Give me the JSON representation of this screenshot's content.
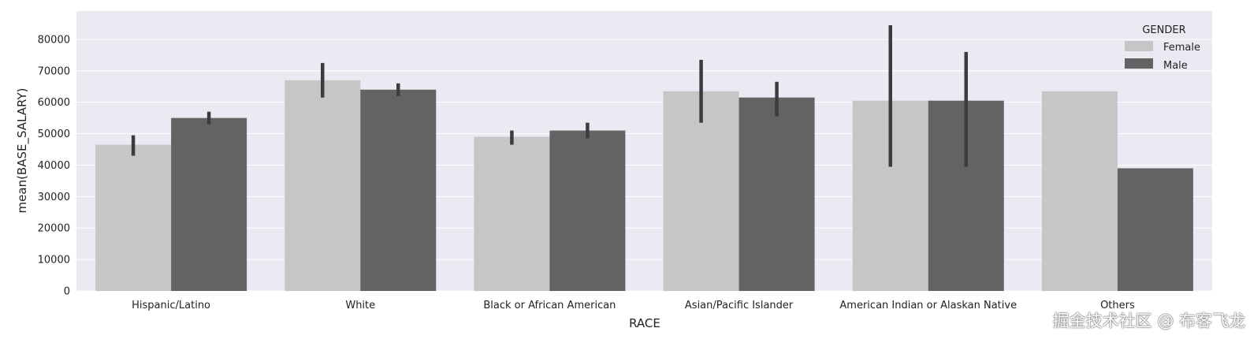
{
  "chart_data": {
    "type": "bar",
    "xlabel": "RACE",
    "ylabel": "mean(BASE_SALARY)",
    "ylim": [
      0,
      89000
    ],
    "yticks": [
      0,
      10000,
      20000,
      30000,
      40000,
      50000,
      60000,
      70000,
      80000
    ],
    "grid": true,
    "legend_position": "top-right",
    "legend_title": "GENDER",
    "categories": [
      "Hispanic/Latino",
      "White",
      "Black or African American",
      "Asian/Pacific Islander",
      "American Indian or Alaskan Native",
      "Others"
    ],
    "series": [
      {
        "name": "Female",
        "color": "#c6c6c6",
        "values": [
          46500,
          67000,
          49000,
          63500,
          60500,
          63500
        ],
        "ci": [
          [
            43000,
            49500
          ],
          [
            61500,
            72500
          ],
          [
            46500,
            51000
          ],
          [
            53500,
            73500
          ],
          [
            39500,
            84500
          ],
          null
        ]
      },
      {
        "name": "Male",
        "color": "#636363",
        "values": [
          55000,
          64000,
          51000,
          61500,
          60500,
          39000
        ],
        "ci": [
          [
            53000,
            57000
          ],
          [
            62000,
            66000
          ],
          [
            48500,
            53500
          ],
          [
            55500,
            66500
          ],
          [
            39500,
            76000
          ],
          null
        ]
      }
    ]
  },
  "watermark": "掘金技术社区 @ 布客飞龙"
}
